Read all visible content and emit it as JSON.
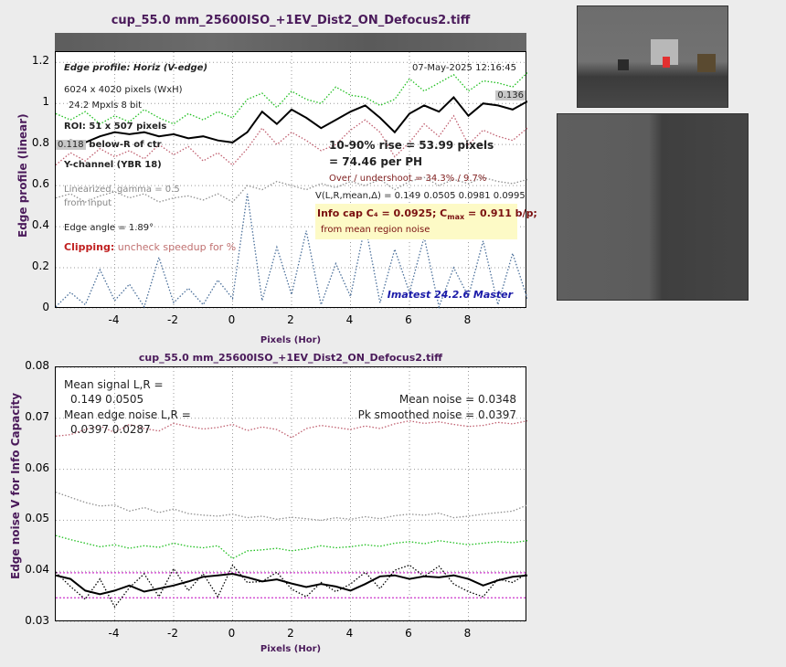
{
  "top_chart": {
    "title": "cup_55.0 mm_25600ISO_+1EV_Dist2_ON_Defocus2.tiff",
    "ylabel": "Edge profile (linear)",
    "xlabel": "Pixels (Hor)",
    "annotations": {
      "edge_profile": "Edge profile: Horiz (V-edge)",
      "date": "07-May-2025 12:16:45",
      "pixels": "6024 x 4020 pixels (WxH)",
      "mpxls": "24.2 Mpxls   8 bit",
      "roi": "ROI:  51 x 507 pixels",
      "below_ctr": "18% below-R of ctr",
      "channel": "Y-channel  (YBR 18)",
      "linearized": "Linearized, gamma = 0.5",
      "from_input": "from input",
      "edge_angle": "Edge angle = 1.89°",
      "clipping_label": "Clipping:",
      "clipping_note": "uncheck speedup for %",
      "rise": "10-90% rise = 53.99 pixels",
      "per_ph": "=  74.46 per PH",
      "overshoot": "Over / undershoot = 34.3% /  9.7%",
      "v_values": "V(L,R,mean,Δ) = 0.149  0.0505  0.0981  0.0995",
      "info_cap": "Info cap C₄ = 0.0925;  C",
      "cmax_sub": "max",
      "cmax_val": " = 0.911 b/p;",
      "noise_note": "from mean region noise",
      "version": "Imatest 24.2.6 Master",
      "left_level": "0.118",
      "right_level": "0.136"
    }
  },
  "bottom_chart": {
    "title": "cup_55.0 mm_25600ISO_+1EV_Dist2_ON_Defocus2.tiff",
    "ylabel": "Edge noise V for Info Capacity",
    "xlabel": "Pixels (Hor)",
    "annotations": {
      "mean_signal": "Mean signal L,R =",
      "mean_signal_vals": "0.149  0.0505",
      "mean_edge_noise": "Mean edge noise L,R =",
      "mean_edge_noise_vals": "0.0397  0.0287",
      "mean_noise": "Mean noise = 0.0348",
      "pk_noise": "Pk smoothed noise = 0.0397"
    }
  },
  "chart_data": [
    {
      "type": "line",
      "title": "cup_55.0 mm_25600ISO_+1EV_Dist2_ON_Defocus2.tiff",
      "xlabel": "Pixels (Hor)",
      "ylabel": "Edge profile (linear)",
      "xlim": [
        -6,
        10
      ],
      "ylim": [
        0,
        1.25
      ],
      "xticks": [
        -4,
        -2,
        0,
        2,
        4,
        6,
        8
      ],
      "yticks": [
        0,
        0.2,
        0.4,
        0.6,
        0.8,
        1,
        1.2
      ],
      "grid": true,
      "x": [
        -6,
        -5.5,
        -5,
        -4.5,
        -4,
        -3.5,
        -3,
        -2.5,
        -2,
        -1.5,
        -1,
        -0.5,
        0,
        0.5,
        1,
        1.5,
        2,
        2.5,
        3,
        3.5,
        4,
        4.5,
        5,
        5.5,
        6,
        6.5,
        7,
        7.5,
        8,
        8.5,
        9,
        9.5,
        10
      ],
      "series": [
        {
          "color": "#000000",
          "style": "solid",
          "values": [
            0.8,
            0.82,
            0.81,
            0.84,
            0.86,
            0.85,
            0.86,
            0.84,
            0.85,
            0.83,
            0.84,
            0.82,
            0.81,
            0.86,
            0.96,
            0.9,
            0.97,
            0.93,
            0.88,
            0.92,
            0.96,
            0.99,
            0.93,
            0.86,
            0.95,
            0.99,
            0.96,
            1.03,
            0.94,
            1.0,
            0.99,
            0.97,
            1.01
          ]
        },
        {
          "color": "#1fbf1f",
          "style": "dotted",
          "values": [
            0.95,
            0.92,
            0.96,
            0.9,
            0.94,
            0.91,
            0.97,
            0.93,
            0.9,
            0.95,
            0.92,
            0.96,
            0.93,
            1.02,
            1.05,
            0.98,
            1.06,
            1.02,
            1.0,
            1.08,
            1.04,
            1.03,
            0.99,
            1.02,
            1.12,
            1.06,
            1.1,
            1.14,
            1.06,
            1.11,
            1.1,
            1.08,
            1.15
          ]
        },
        {
          "color": "#c06070",
          "style": "dotted",
          "values": [
            0.7,
            0.76,
            0.72,
            0.78,
            0.74,
            0.77,
            0.73,
            0.8,
            0.75,
            0.79,
            0.72,
            0.76,
            0.7,
            0.78,
            0.88,
            0.8,
            0.86,
            0.82,
            0.77,
            0.8,
            0.87,
            0.92,
            0.86,
            0.74,
            0.81,
            0.9,
            0.84,
            0.94,
            0.8,
            0.87,
            0.84,
            0.82,
            0.88
          ]
        },
        {
          "color": "#909090",
          "style": "dotted",
          "values": [
            0.54,
            0.56,
            0.52,
            0.55,
            0.57,
            0.54,
            0.56,
            0.52,
            0.54,
            0.55,
            0.53,
            0.56,
            0.52,
            0.6,
            0.58,
            0.62,
            0.6,
            0.58,
            0.61,
            0.59,
            0.62,
            0.6,
            0.63,
            0.58,
            0.62,
            0.64,
            0.6,
            0.63,
            0.61,
            0.64,
            0.62,
            0.61,
            0.63
          ]
        },
        {
          "color": "#4a6f9a",
          "style": "dotted",
          "values": [
            0.01,
            0.08,
            0.02,
            0.19,
            0.04,
            0.12,
            0.01,
            0.25,
            0.03,
            0.1,
            0.02,
            0.14,
            0.05,
            0.56,
            0.04,
            0.3,
            0.07,
            0.38,
            0.02,
            0.22,
            0.06,
            0.41,
            0.03,
            0.29,
            0.08,
            0.35,
            0.01,
            0.2,
            0.06,
            0.33,
            0.02,
            0.27,
            0.05
          ]
        }
      ]
    },
    {
      "type": "line",
      "title": "cup_55.0 mm_25600ISO_+1EV_Dist2_ON_Defocus2.tiff",
      "xlabel": "Pixels (Hor)",
      "ylabel": "Edge noise V for Info Capacity",
      "xlim": [
        -6,
        10
      ],
      "ylim": [
        0.03,
        0.08
      ],
      "xticks": [
        -4,
        -2,
        0,
        2,
        4,
        6,
        8
      ],
      "yticks": [
        0.03,
        0.04,
        0.05,
        0.06,
        0.07,
        0.08
      ],
      "grid": true,
      "hlines": [
        {
          "y": 0.0397,
          "color": "#cc33cc"
        },
        {
          "y": 0.0348,
          "color": "#cc33cc"
        }
      ],
      "x": [
        -6,
        -5.5,
        -5,
        -4.5,
        -4,
        -3.5,
        -3,
        -2.5,
        -2,
        -1.5,
        -1,
        -0.5,
        0,
        0.5,
        1,
        1.5,
        2,
        2.5,
        3,
        3.5,
        4,
        4.5,
        5,
        5.5,
        6,
        6.5,
        7,
        7.5,
        8,
        8.5,
        9,
        9.5,
        10
      ],
      "series": [
        {
          "color": "#c06070",
          "style": "dotted",
          "values": [
            0.0665,
            0.0668,
            0.0678,
            0.0685,
            0.0672,
            0.0688,
            0.068,
            0.0675,
            0.069,
            0.0684,
            0.0679,
            0.0682,
            0.0688,
            0.0676,
            0.0683,
            0.0678,
            0.0662,
            0.068,
            0.0686,
            0.0682,
            0.0678,
            0.0685,
            0.068,
            0.0689,
            0.0695,
            0.069,
            0.0693,
            0.0688,
            0.0684,
            0.0686,
            0.0692,
            0.0689,
            0.0695
          ]
        },
        {
          "color": "#909090",
          "style": "dotted",
          "values": [
            0.0555,
            0.0545,
            0.0535,
            0.0528,
            0.053,
            0.0518,
            0.0525,
            0.0515,
            0.0522,
            0.0513,
            0.051,
            0.0508,
            0.0512,
            0.0505,
            0.0508,
            0.0502,
            0.0506,
            0.0503,
            0.05,
            0.0505,
            0.0502,
            0.0507,
            0.0503,
            0.0509,
            0.0512,
            0.051,
            0.0514,
            0.0505,
            0.0508,
            0.0512,
            0.0515,
            0.0518,
            0.053
          ]
        },
        {
          "color": "#1fbf1f",
          "style": "dotted",
          "values": [
            0.047,
            0.0462,
            0.0455,
            0.0448,
            0.0452,
            0.0445,
            0.045,
            0.0447,
            0.0455,
            0.0449,
            0.0446,
            0.045,
            0.0425,
            0.044,
            0.0442,
            0.0445,
            0.044,
            0.0444,
            0.045,
            0.0446,
            0.0448,
            0.0452,
            0.0449,
            0.0455,
            0.0458,
            0.0454,
            0.046,
            0.0456,
            0.0452,
            0.0455,
            0.0458,
            0.0456,
            0.046
          ]
        },
        {
          "color": "#000000",
          "style": "solid",
          "values": [
            0.0392,
            0.0385,
            0.0362,
            0.0355,
            0.0362,
            0.0372,
            0.036,
            0.0366,
            0.0372,
            0.038,
            0.0389,
            0.0392,
            0.0395,
            0.0388,
            0.038,
            0.0384,
            0.0376,
            0.0369,
            0.0375,
            0.037,
            0.0362,
            0.0375,
            0.039,
            0.0392,
            0.0385,
            0.039,
            0.0388,
            0.0392,
            0.0385,
            0.0372,
            0.0382,
            0.0389,
            0.0392
          ]
        },
        {
          "color": "#000000",
          "style": "dotted",
          "values": [
            0.0398,
            0.037,
            0.0345,
            0.0385,
            0.033,
            0.0368,
            0.0395,
            0.035,
            0.0405,
            0.0362,
            0.0395,
            0.035,
            0.0412,
            0.0378,
            0.038,
            0.0398,
            0.0365,
            0.035,
            0.0378,
            0.036,
            0.0375,
            0.0398,
            0.0366,
            0.0402,
            0.0412,
            0.039,
            0.041,
            0.0375,
            0.036,
            0.035,
            0.0385,
            0.0378,
            0.0396
          ]
        }
      ]
    }
  ]
}
